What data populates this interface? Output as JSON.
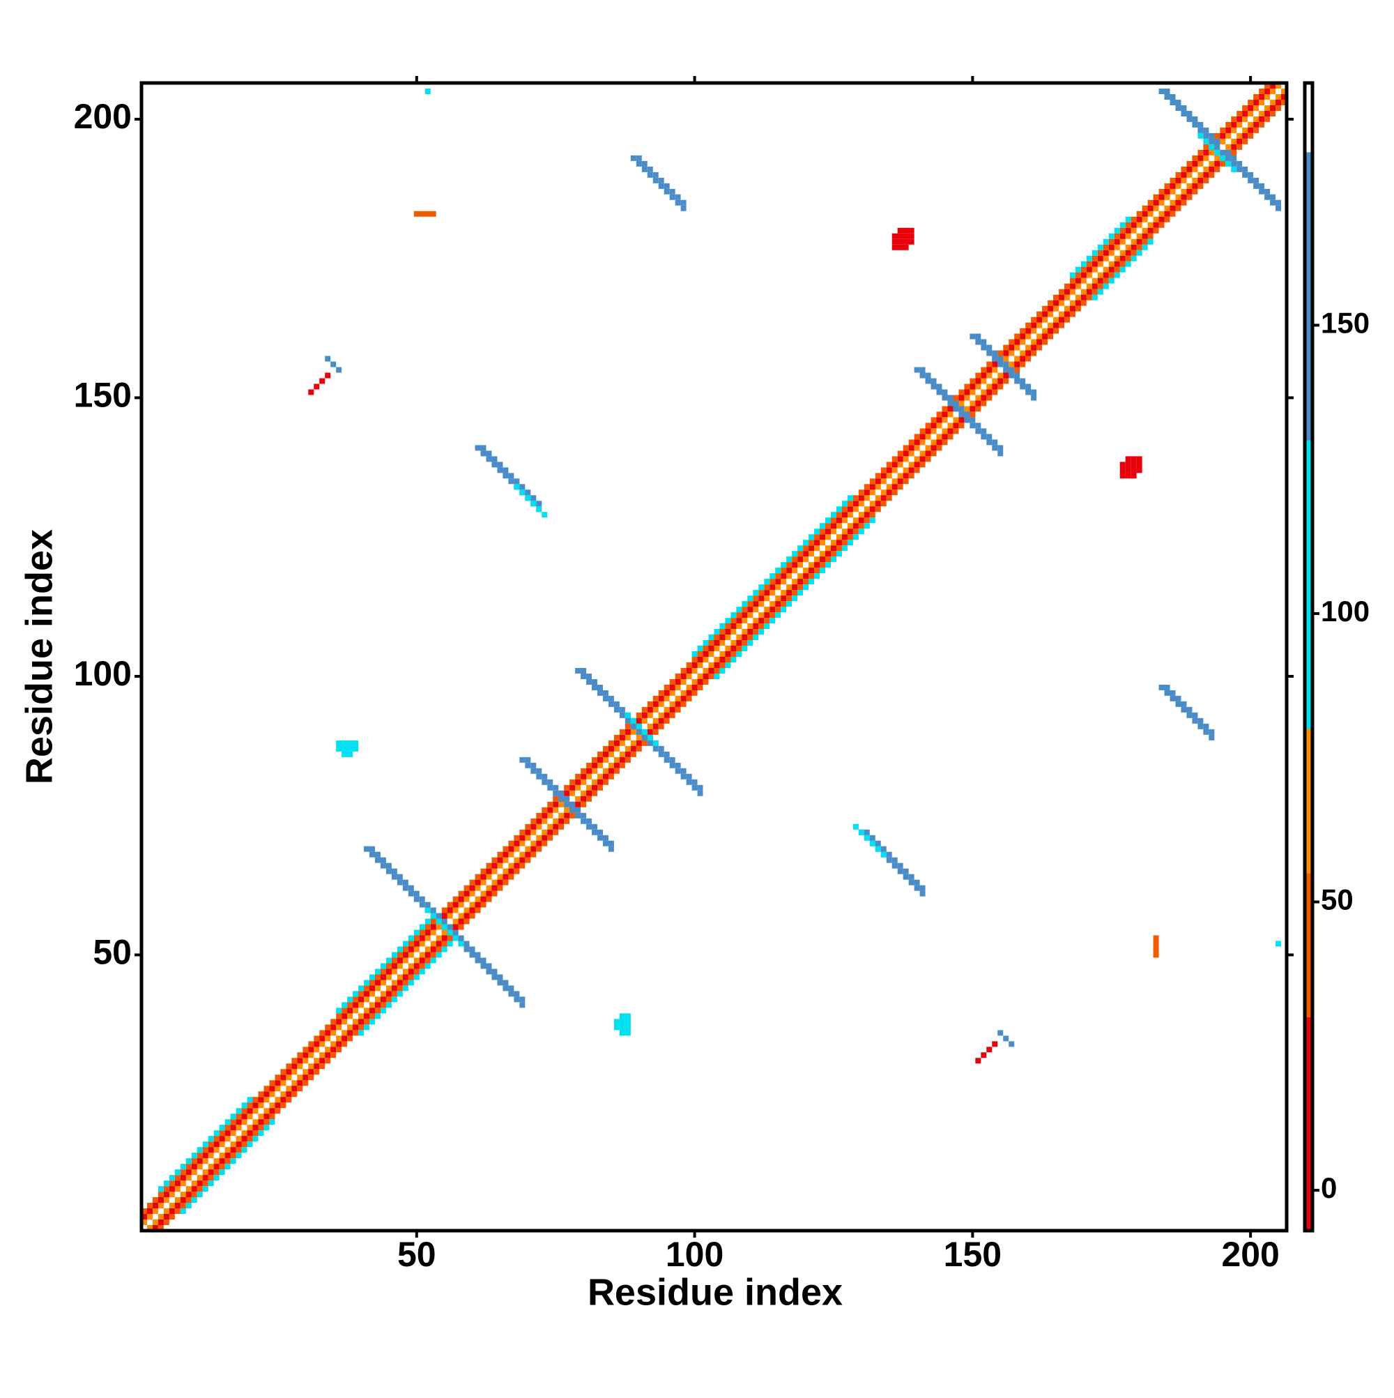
{
  "chart_data": {
    "type": "heatmap",
    "xlabel": "Residue index",
    "ylabel": "Residue index",
    "xlim": [
      0.5,
      206.5
    ],
    "ylim": [
      0.5,
      206.5
    ],
    "xticks": [
      50,
      100,
      150,
      200
    ],
    "yticks": [
      50,
      100,
      150,
      200
    ],
    "symmetric": true,
    "colorbar": {
      "ticks": [
        0,
        50,
        100,
        150
      ],
      "levels": [
        -7,
        30,
        55,
        80,
        130,
        180,
        192
      ],
      "colors": [
        "#e8000b",
        "#f25a00",
        "#ff8c00",
        "#00e0f0",
        "#4a8cc8",
        "#ffffff"
      ]
    },
    "cells": [
      {
        "x": [
          1,
          205
        ],
        "y": [
          2,
          206
        ],
        "value": 65
      },
      {
        "x": [
          1,
          204
        ],
        "y": [
          3,
          206
        ],
        "value": 15
      },
      {
        "x": [
          1,
          203
        ],
        "y": [
          4,
          206
        ],
        "value": 45
      },
      {
        "x": [
          4,
          20
        ],
        "y": [
          8,
          24
        ],
        "value": 105
      },
      {
        "x": [
          36,
          52
        ],
        "y": [
          40,
          56
        ],
        "value": 105
      },
      {
        "x": [
          100,
          128
        ],
        "y": [
          104,
          132
        ],
        "value": 105
      },
      {
        "x": [
          168,
          178
        ],
        "y": [
          172,
          182
        ],
        "value": 105
      },
      {
        "x": [
          41,
          55
        ],
        "y": [
          69,
          55
        ],
        "value": 155
      },
      {
        "x": [
          42,
          55
        ],
        "y": [
          69,
          56
        ],
        "value": 155
      },
      {
        "x": [
          52,
          56
        ],
        "y": [
          58,
          54
        ],
        "value": 105
      },
      {
        "x": [
          69,
          77
        ],
        "y": [
          85,
          77
        ],
        "value": 155
      },
      {
        "x": [
          70,
          77
        ],
        "y": [
          85,
          78
        ],
        "value": 155
      },
      {
        "x": [
          79,
          90
        ],
        "y": [
          101,
          90
        ],
        "value": 155
      },
      {
        "x": [
          80,
          90
        ],
        "y": [
          101,
          91
        ],
        "value": 155
      },
      {
        "x": [
          88,
          92
        ],
        "y": [
          93,
          89
        ],
        "value": 105
      },
      {
        "x": [
          140,
          148
        ],
        "y": [
          155,
          147
        ],
        "value": 155
      },
      {
        "x": [
          141,
          148
        ],
        "y": [
          155,
          148
        ],
        "value": 155
      },
      {
        "x": [
          150,
          156
        ],
        "y": [
          161,
          155
        ],
        "value": 155
      },
      {
        "x": [
          151,
          156
        ],
        "y": [
          161,
          156
        ],
        "value": 155
      },
      {
        "x": [
          184,
          194
        ],
        "y": [
          205,
          195
        ],
        "value": 155
      },
      {
        "x": [
          185,
          194
        ],
        "y": [
          205,
          196
        ],
        "value": 155
      },
      {
        "x": [
          191,
          195
        ],
        "y": [
          197,
          193
        ],
        "value": 105
      },
      {
        "x": [
          61,
          72
        ],
        "y": [
          141,
          130
        ],
        "value": 155
      },
      {
        "x": [
          62,
          72
        ],
        "y": [
          141,
          131
        ],
        "value": 155
      },
      {
        "x": [
          68,
          73
        ],
        "y": [
          134,
          129
        ],
        "value": 105
      },
      {
        "x": [
          89,
          98
        ],
        "y": [
          193,
          184
        ],
        "value": 155
      },
      {
        "x": [
          90,
          98
        ],
        "y": [
          193,
          185
        ],
        "value": 155
      },
      {
        "x": [
          136,
          138
        ],
        "y": [
          177,
          177
        ],
        "value": 15
      },
      {
        "x": [
          136,
          139
        ],
        "y": [
          178,
          178
        ],
        "value": 15
      },
      {
        "x": [
          136,
          139
        ],
        "y": [
          179,
          179
        ],
        "value": 15
      },
      {
        "x": [
          137,
          139
        ],
        "y": [
          180,
          180
        ],
        "value": 15
      },
      {
        "x": [
          37,
          38
        ],
        "y": [
          86,
          86
        ],
        "value": 105
      },
      {
        "x": [
          36,
          39
        ],
        "y": [
          87,
          87
        ],
        "value": 105
      },
      {
        "x": [
          36,
          39
        ],
        "y": [
          88,
          88
        ],
        "value": 105
      },
      {
        "x": [
          50,
          53
        ],
        "y": [
          183,
          183
        ],
        "value": 45
      },
      {
        "x": [
          34,
          36
        ],
        "y": [
          157,
          155
        ],
        "value": 155
      },
      {
        "x": [
          31,
          34
        ],
        "y": [
          151,
          154
        ],
        "value": 15
      },
      {
        "x": [
          52,
          52
        ],
        "y": [
          205,
          205
        ],
        "value": 105
      }
    ]
  }
}
